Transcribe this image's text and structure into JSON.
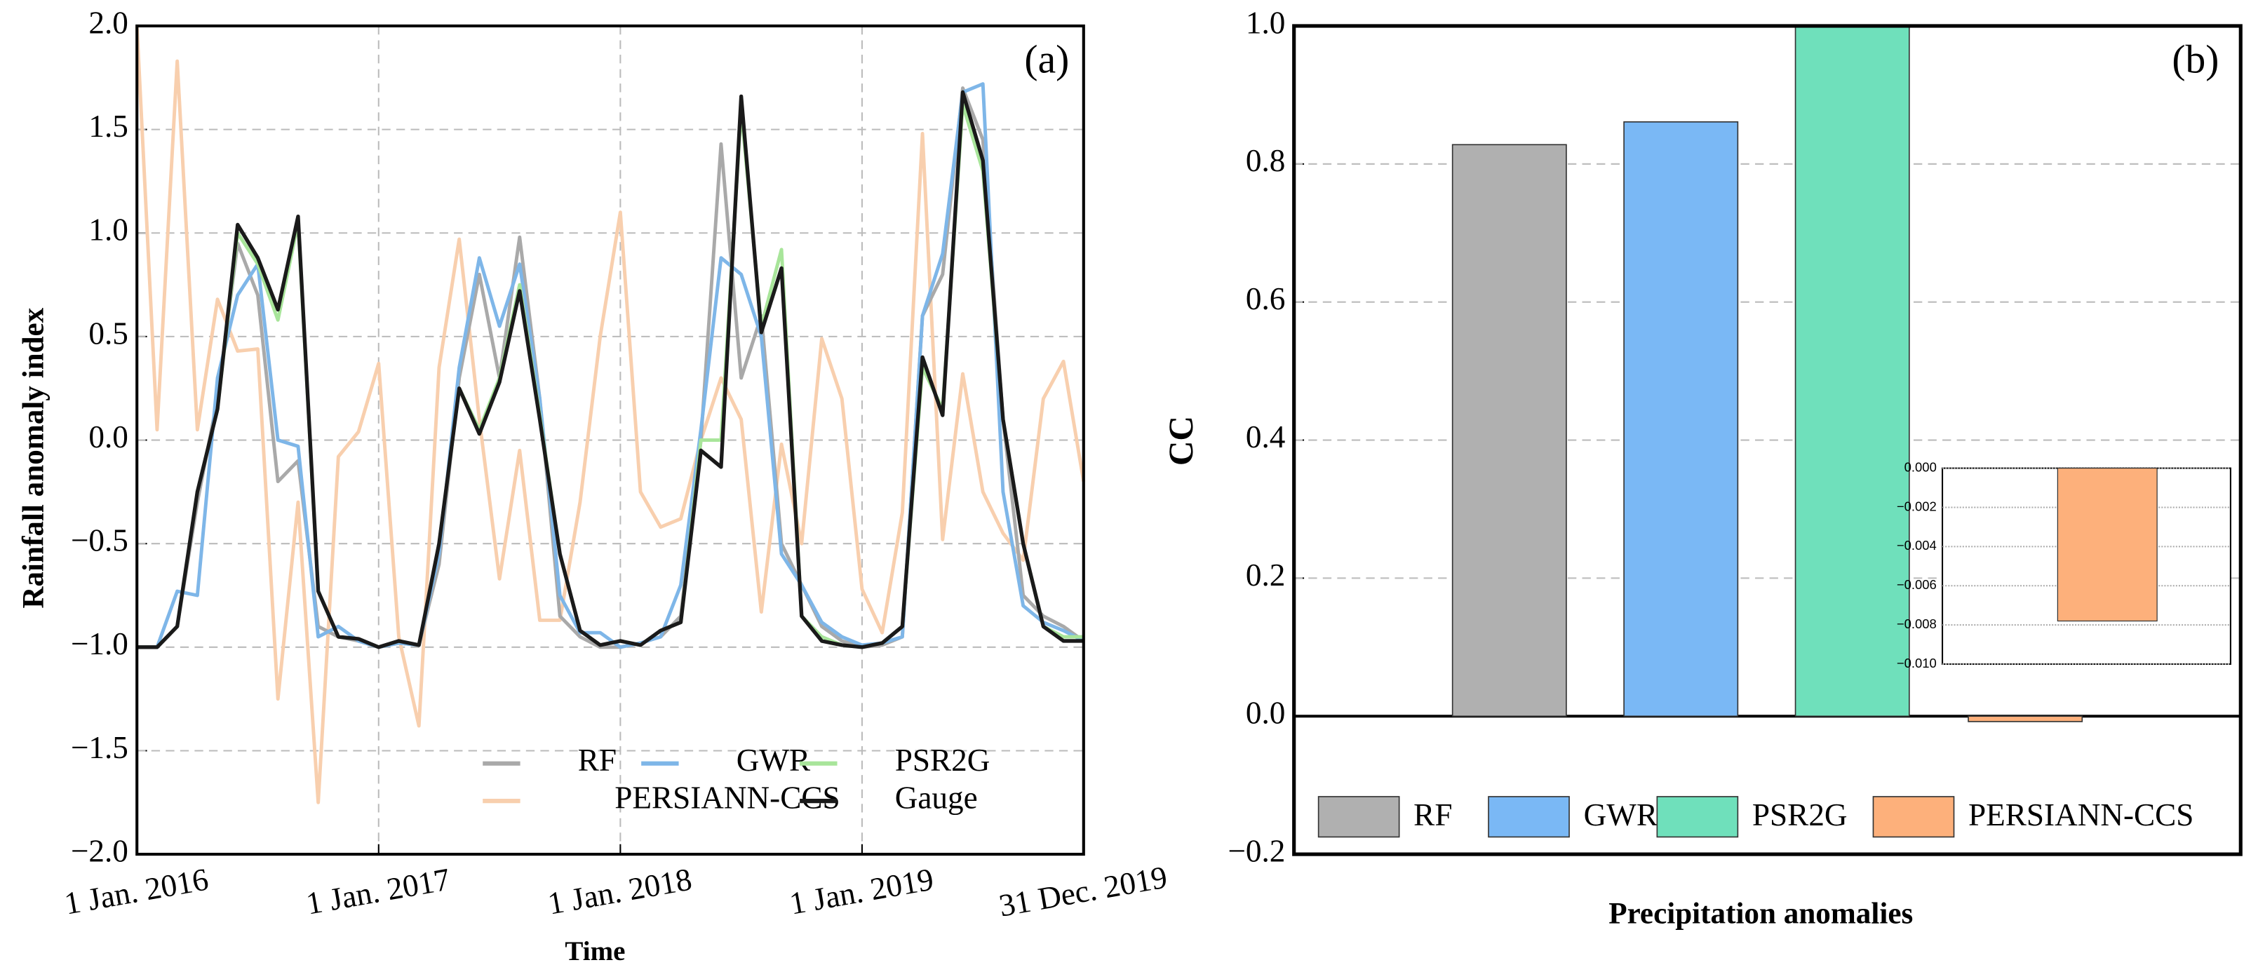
{
  "chart_data": [
    {
      "type": "line",
      "xlabel": "Time",
      "ylabel": "Rainfall anomaly index",
      "annotation": "(a)",
      "categories": [
        "1 Jan. 2016",
        null,
        null,
        null,
        null,
        null,
        null,
        null,
        null,
        null,
        null,
        null,
        "1 Jan. 2017",
        null,
        null,
        null,
        null,
        null,
        null,
        null,
        null,
        null,
        null,
        null,
        "1 Jan. 2018",
        null,
        null,
        null,
        null,
        null,
        null,
        null,
        null,
        null,
        null,
        null,
        "1 Jan. 2019",
        null,
        null,
        null,
        null,
        null,
        null,
        null,
        null,
        null,
        null,
        "31 Dec. 2019"
      ],
      "series": [
        {
          "name": "RF",
          "color": "#a9a9a9",
          "values": [
            -1,
            -1,
            -0.9,
            -0.3,
            0.2,
            0.95,
            0.7,
            -0.2,
            -0.1,
            -0.9,
            -0.95,
            -0.97,
            -1,
            -0.98,
            -0.99,
            -0.6,
            0.3,
            0.8,
            0.3,
            0.98,
            0.2,
            -0.85,
            -0.95,
            -1,
            -1,
            -0.98,
            -0.95,
            -0.85,
            0.0,
            1.43,
            0.3,
            0.6,
            -0.5,
            -0.7,
            -0.9,
            -0.97,
            -1,
            -0.99,
            -0.95,
            0.6,
            0.8,
            1.7,
            1.45,
            0.1,
            -0.75,
            -0.85,
            -0.9,
            -0.97
          ]
        },
        {
          "name": "GWR",
          "color": "#7eb6e8",
          "values": [
            -1,
            -1,
            -0.73,
            -0.75,
            0.3,
            0.7,
            0.85,
            0.0,
            -0.03,
            -0.95,
            -0.9,
            -0.97,
            -1,
            -0.98,
            -0.99,
            -0.55,
            0.35,
            0.88,
            0.55,
            0.85,
            0.2,
            -0.75,
            -0.93,
            -0.93,
            -1,
            -0.98,
            -0.95,
            -0.7,
            0.05,
            0.88,
            0.8,
            0.5,
            -0.55,
            -0.7,
            -0.88,
            -0.95,
            -0.99,
            -0.98,
            -0.95,
            0.6,
            0.9,
            1.68,
            1.72,
            -0.25,
            -0.8,
            -0.88,
            -0.92,
            -0.97
          ]
        },
        {
          "name": "PSR2G",
          "color": "#a8e59a",
          "values": [
            -1,
            -1,
            -0.9,
            -0.25,
            0.15,
            1.0,
            0.85,
            0.58,
            1.05,
            -0.73,
            -0.95,
            -0.96,
            -1,
            -0.97,
            -0.99,
            -0.5,
            0.25,
            0.05,
            0.3,
            0.75,
            0.12,
            -0.55,
            -0.92,
            -0.99,
            -0.97,
            -0.99,
            -0.92,
            -0.88,
            0.0,
            0.0,
            1.6,
            0.55,
            0.92,
            -0.85,
            -0.95,
            -0.99,
            -1,
            -0.98,
            -0.9,
            0.35,
            0.15,
            1.62,
            1.3,
            0.1,
            -0.5,
            -0.9,
            -0.95,
            -0.95
          ]
        },
        {
          "name": "PERSIANN-CCS",
          "color": "#f8cfae",
          "values": [
            2.0,
            0.05,
            1.83,
            0.05,
            0.68,
            0.43,
            0.44,
            -1.25,
            -0.3,
            -1.75,
            -0.08,
            0.04,
            0.37,
            -0.95,
            -1.38,
            0.35,
            0.97,
            0.1,
            -0.67,
            -0.05,
            -0.87,
            -0.87,
            -0.3,
            0.5,
            1.1,
            -0.25,
            -0.42,
            -0.38,
            0.0,
            0.3,
            0.1,
            -0.83,
            -0.02,
            -0.5,
            0.49,
            0.2,
            -0.72,
            -0.93,
            -0.35,
            1.48,
            -0.48,
            0.32,
            -0.25,
            -0.45,
            -0.58,
            0.2,
            0.38,
            -0.2
          ]
        },
        {
          "name": "Gauge",
          "color": "#1a1a1a",
          "values": [
            -1,
            -1,
            -0.9,
            -0.25,
            0.15,
            1.04,
            0.88,
            0.63,
            1.08,
            -0.73,
            -0.95,
            -0.96,
            -1,
            -0.97,
            -0.99,
            -0.5,
            0.25,
            0.03,
            0.28,
            0.72,
            0.1,
            -0.55,
            -0.92,
            -0.99,
            -0.97,
            -0.99,
            -0.92,
            -0.88,
            -0.05,
            -0.13,
            1.66,
            0.52,
            0.83,
            -0.85,
            -0.97,
            -0.99,
            -1,
            -0.98,
            -0.9,
            0.4,
            0.12,
            1.68,
            1.35,
            0.1,
            -0.5,
            -0.9,
            -0.97,
            -0.97
          ]
        }
      ],
      "ylim": [
        -2,
        2
      ],
      "yticks": [
        {
          "value": -2,
          "label": "−2.0"
        },
        {
          "value": -1.5,
          "label": "−1.5"
        },
        {
          "value": -1,
          "label": "−1.0"
        },
        {
          "value": -0.5,
          "label": "−0.5"
        },
        {
          "value": 0,
          "label": "0.0"
        },
        {
          "value": 0.5,
          "label": "0.5"
        },
        {
          "value": 1,
          "label": "1.0"
        },
        {
          "value": 1.5,
          "label": "1.5"
        },
        {
          "value": 2,
          "label": "2.0"
        }
      ],
      "grid": true,
      "legend": "lower right"
    },
    {
      "type": "bar",
      "xlabel": "Precipitation anomalies",
      "ylabel": "CC",
      "annotation": "(b)",
      "categories": [
        "RF",
        "GWR",
        "PSR2G",
        "PERSIANN-CCS"
      ],
      "values": [
        0.828,
        0.861,
        1.0,
        -0.0078
      ],
      "colors": [
        "#b0b0b0",
        "#7ab8f5",
        "#6fe0bb",
        "#fdb07b"
      ],
      "ylim": [
        -0.2,
        1.0
      ],
      "yticks": [
        {
          "value": -0.2,
          "label": "−0.2"
        },
        {
          "value": 0,
          "label": "0.0"
        },
        {
          "value": 0.2,
          "label": "0.2"
        },
        {
          "value": 0.4,
          "label": "0.4"
        },
        {
          "value": 0.6,
          "label": "0.6"
        },
        {
          "value": 0.8,
          "label": "0.8"
        },
        {
          "value": 1.0,
          "label": "1.0"
        }
      ],
      "grid": true,
      "legend": "lower center",
      "inset": {
        "ylim": [
          -0.01,
          0
        ],
        "yticks": [
          {
            "value": 0,
            "label": "0.000"
          },
          {
            "value": -0.002,
            "label": "−0.002"
          },
          {
            "value": -0.004,
            "label": "−0.004"
          },
          {
            "value": -0.006,
            "label": "−0.006"
          },
          {
            "value": -0.008,
            "label": "−0.008"
          },
          {
            "value": -0.01,
            "label": "−0.010"
          }
        ]
      }
    }
  ]
}
